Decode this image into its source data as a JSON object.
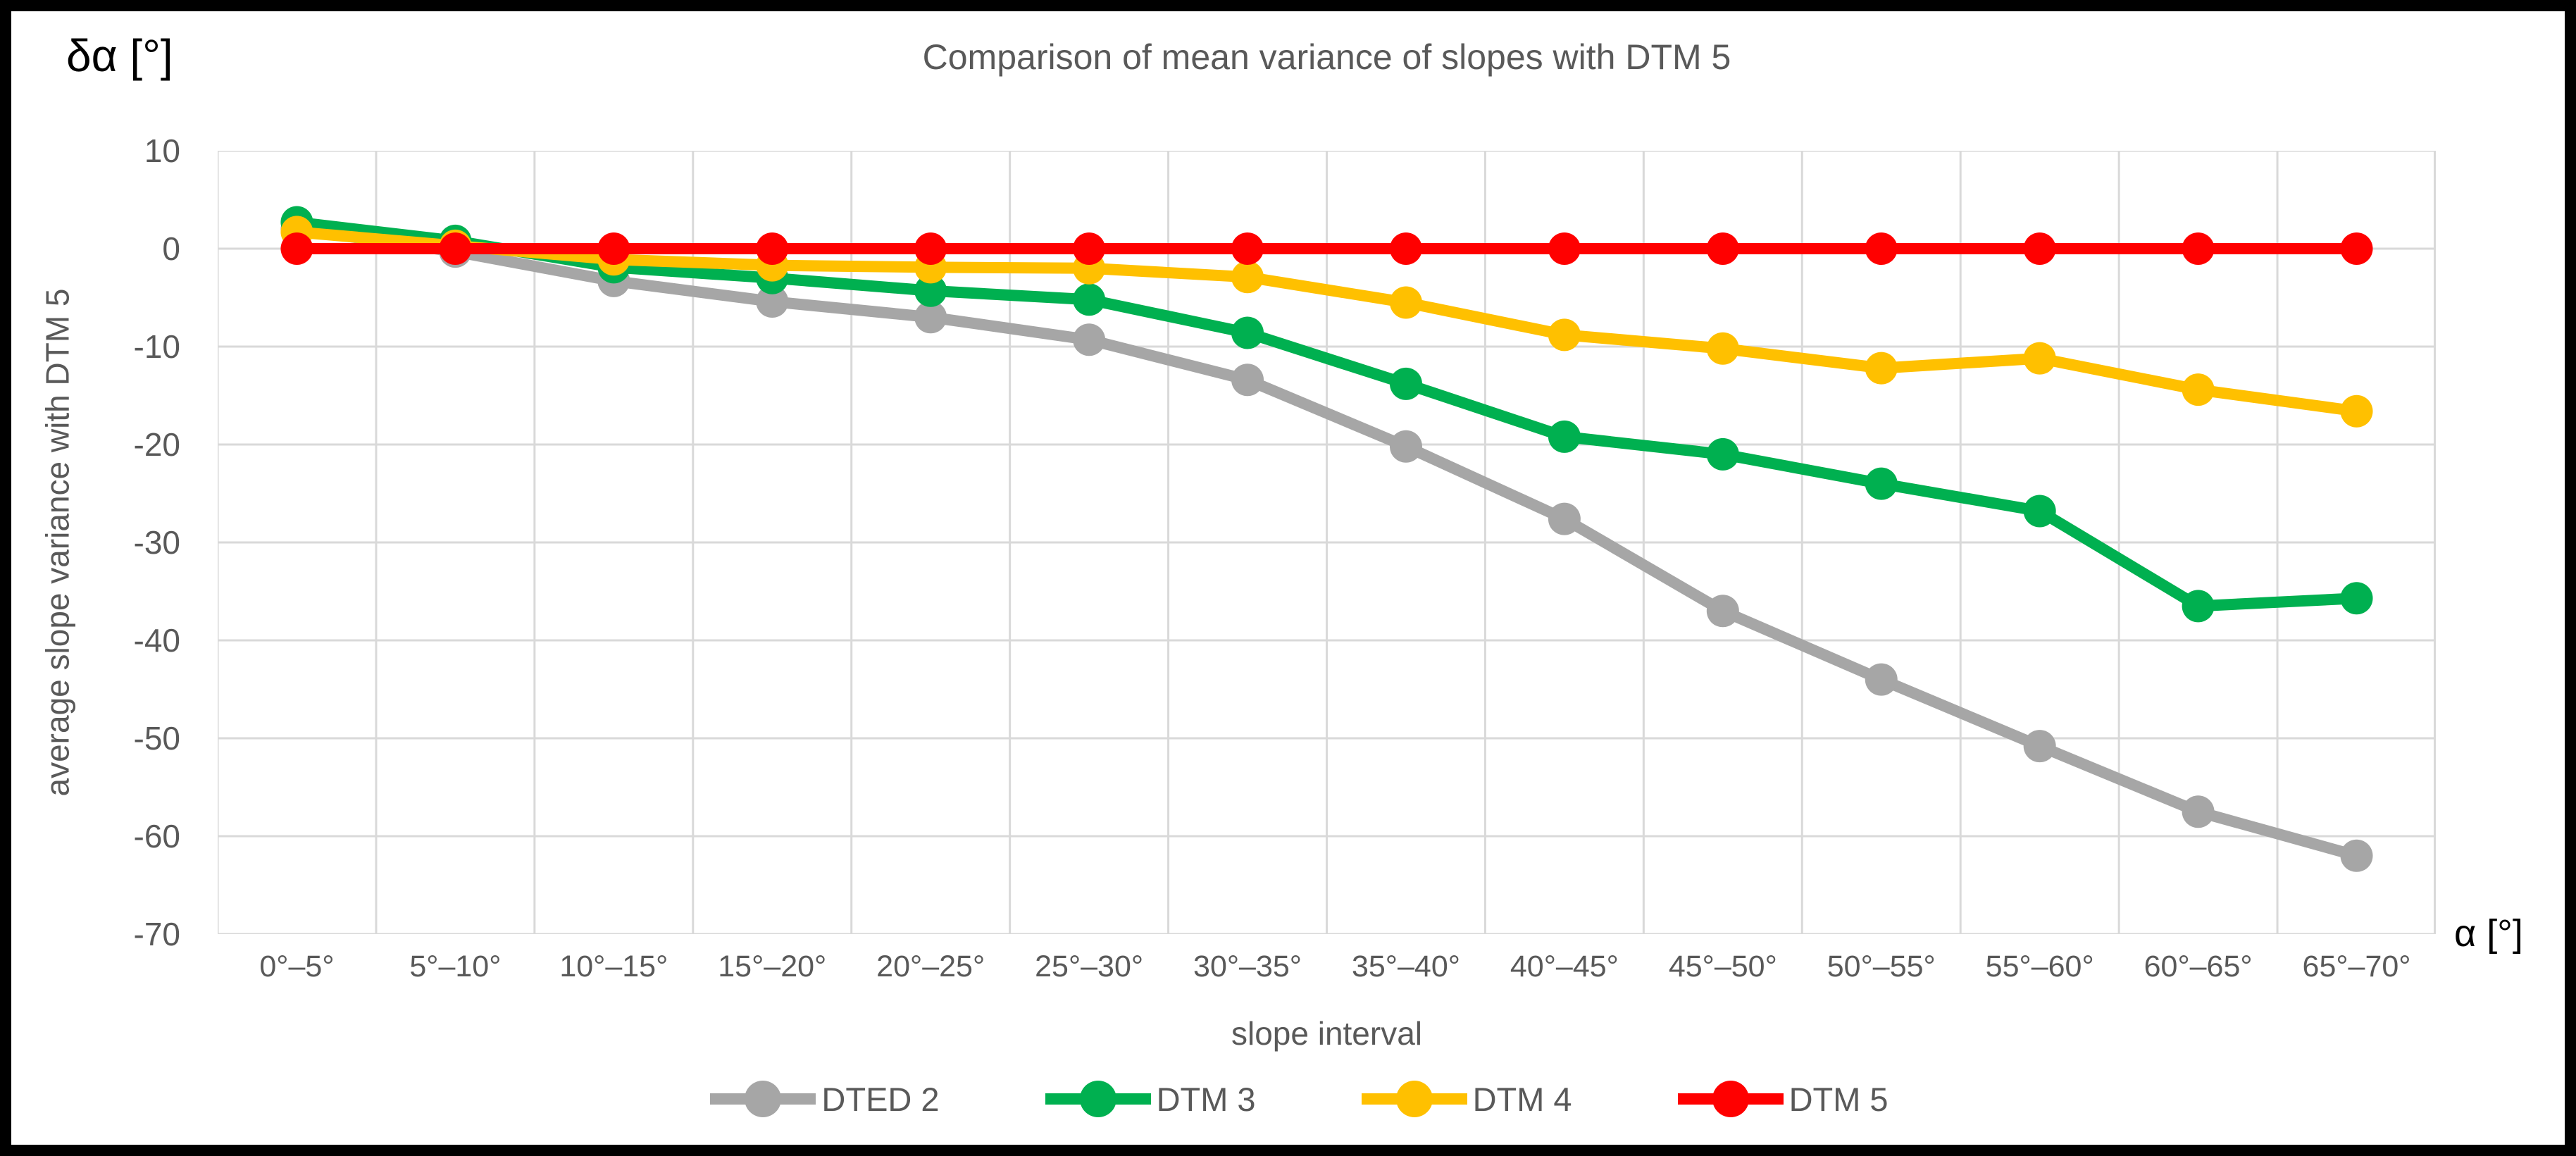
{
  "chart_data": {
    "type": "line",
    "title": "Comparison of mean variance of slopes with DTM 5",
    "y_axis_unit_label": "δα [°]",
    "x_axis_unit_label": "α [°]",
    "ylabel": "average slope variance with DTM 5",
    "xlabel": "slope interval",
    "ylim": [
      -70,
      10
    ],
    "yticks": [
      10,
      0,
      -10,
      -20,
      -30,
      -40,
      -50,
      -60,
      -70
    ],
    "grid": true,
    "legend_position": "bottom",
    "categories": [
      "0°–5°",
      "5°–10°",
      "10°–15°",
      "15°–20°",
      "20°–25°",
      "25°–30°",
      "30°–35°",
      "35°–40°",
      "40°–45°",
      "45°–50°",
      "50°–55°",
      "55°–60°",
      "60°–65°",
      "65°–70°"
    ],
    "series": [
      {
        "name": "DTED 2",
        "color": "#A6A6A6",
        "values": [
          2.0,
          -0.3,
          -3.3,
          -5.4,
          -7.0,
          -9.3,
          -13.4,
          -20.2,
          -27.6,
          -37.0,
          -44.0,
          -50.8,
          -57.5,
          -62.0
        ]
      },
      {
        "name": "DTM 3",
        "color": "#00B050",
        "values": [
          2.7,
          0.8,
          -1.9,
          -3.0,
          -4.3,
          -5.2,
          -8.6,
          -13.8,
          -19.2,
          -21.0,
          -24.0,
          -26.8,
          -36.5,
          -35.7
        ]
      },
      {
        "name": "DTM 4",
        "color": "#FFC000",
        "values": [
          1.7,
          0.3,
          -1.1,
          -1.7,
          -1.9,
          -2.0,
          -2.9,
          -5.5,
          -8.8,
          -10.2,
          -12.2,
          -11.2,
          -14.4,
          -16.6
        ]
      },
      {
        "name": "DTM 5",
        "color": "#FF0000",
        "values": [
          0,
          0,
          0,
          0,
          0,
          0,
          0,
          0,
          0,
          0,
          0,
          0,
          0,
          0
        ]
      }
    ]
  },
  "colors": {
    "background": "#FFFFFF",
    "border": "#000000",
    "grid": "#D9D9D9",
    "text": "#595959",
    "unit_label_text": "#000000"
  }
}
